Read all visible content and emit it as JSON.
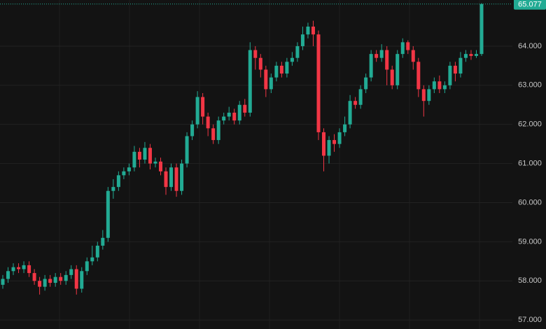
{
  "chart_data": {
    "type": "candlestick",
    "open": [
      57.9,
      58.05,
      58.25,
      58.35,
      58.3,
      58.4,
      58.2,
      58.0,
      57.85,
      58.05,
      57.95,
      58.1,
      58.0,
      58.15,
      58.3,
      57.8,
      58.25,
      58.5,
      58.6,
      58.9,
      59.1,
      60.3,
      60.4,
      60.7,
      60.8,
      60.9,
      61.3,
      61.1,
      61.4,
      61.0,
      61.05,
      60.8,
      60.4,
      60.9,
      60.3,
      61.0,
      61.7,
      62.0,
      62.7,
      62.2,
      61.9,
      61.6,
      62.1,
      62.2,
      62.3,
      62.1,
      62.5,
      62.3,
      63.9,
      63.7,
      63.4,
      62.9,
      63.2,
      63.5,
      63.3,
      63.6,
      63.7,
      64.0,
      64.3,
      64.5,
      64.3,
      61.8,
      61.2,
      61.6,
      61.5,
      61.8,
      62.0,
      62.6,
      62.5,
      62.9,
      63.2,
      63.8,
      63.7,
      63.9,
      63.4,
      63.0,
      63.8,
      64.1,
      63.9,
      63.6,
      62.9,
      62.6,
      62.9,
      63.1,
      62.9,
      63.0,
      63.5,
      63.3,
      63.7,
      63.8,
      63.75,
      63.8
    ],
    "high": [
      58.15,
      58.35,
      58.45,
      58.45,
      58.5,
      58.5,
      58.3,
      58.1,
      58.15,
      58.15,
      58.2,
      58.2,
      58.25,
      58.4,
      58.4,
      58.35,
      58.6,
      58.9,
      59.0,
      59.3,
      60.4,
      60.6,
      60.8,
      60.9,
      61.0,
      61.45,
      61.4,
      61.55,
      61.5,
      61.15,
      61.15,
      60.9,
      61.0,
      61.0,
      61.1,
      61.8,
      62.1,
      62.85,
      62.8,
      62.3,
      62.0,
      62.2,
      62.3,
      62.45,
      62.4,
      62.6,
      62.65,
      64.1,
      64.0,
      63.8,
      63.5,
      63.3,
      63.6,
      63.6,
      63.7,
      63.85,
      64.1,
      64.5,
      64.6,
      64.65,
      64.4,
      61.9,
      61.7,
      61.75,
      61.9,
      62.2,
      62.75,
      62.7,
      63.0,
      63.3,
      63.9,
      63.9,
      64.05,
      64.0,
      63.5,
      63.9,
      64.2,
      64.15,
      64.0,
      63.7,
      63.0,
      63.0,
      63.2,
      63.25,
      63.1,
      63.6,
      63.6,
      63.85,
      63.9,
      63.9,
      63.9,
      65.1
    ],
    "low": [
      57.8,
      57.95,
      58.15,
      58.2,
      58.2,
      58.1,
      57.9,
      57.65,
      57.75,
      57.85,
      57.85,
      57.9,
      57.9,
      58.05,
      57.65,
      57.7,
      58.15,
      58.4,
      58.5,
      58.8,
      59.0,
      60.1,
      60.3,
      60.6,
      60.7,
      60.8,
      60.9,
      61.0,
      60.85,
      60.9,
      60.7,
      60.2,
      60.3,
      60.15,
      60.2,
      60.9,
      61.6,
      61.9,
      62.0,
      61.7,
      61.5,
      61.5,
      62.0,
      62.1,
      62.0,
      62.0,
      62.2,
      62.2,
      63.4,
      63.2,
      62.7,
      62.8,
      63.1,
      63.2,
      63.2,
      63.5,
      63.6,
      63.9,
      64.2,
      64.0,
      61.6,
      60.8,
      61.0,
      61.3,
      61.4,
      61.7,
      61.9,
      62.4,
      62.4,
      62.8,
      63.1,
      63.6,
      63.6,
      63.0,
      62.9,
      62.9,
      63.7,
      63.8,
      63.4,
      62.7,
      62.2,
      62.5,
      62.8,
      62.8,
      62.8,
      62.9,
      63.1,
      63.2,
      63.6,
      63.65,
      63.7,
      63.75
    ],
    "close": [
      58.05,
      58.25,
      58.35,
      58.3,
      58.4,
      58.2,
      58.0,
      57.85,
      58.05,
      57.95,
      58.1,
      58.0,
      58.15,
      58.3,
      57.8,
      58.25,
      58.5,
      58.6,
      58.9,
      59.1,
      60.3,
      60.4,
      60.7,
      60.8,
      60.9,
      61.3,
      61.1,
      61.4,
      61.0,
      61.05,
      60.8,
      60.4,
      60.9,
      60.3,
      61.0,
      61.7,
      62.0,
      62.7,
      62.2,
      61.9,
      61.6,
      62.1,
      62.2,
      62.3,
      62.1,
      62.5,
      62.3,
      63.9,
      63.7,
      63.4,
      62.9,
      63.2,
      63.5,
      63.3,
      63.6,
      63.7,
      64.0,
      64.3,
      64.5,
      64.3,
      61.8,
      61.2,
      61.6,
      61.5,
      61.8,
      62.0,
      62.6,
      62.5,
      62.9,
      63.2,
      63.8,
      63.7,
      63.9,
      63.4,
      63.0,
      63.8,
      64.1,
      63.9,
      63.6,
      62.9,
      62.6,
      62.9,
      63.1,
      62.9,
      63.0,
      63.5,
      63.3,
      63.7,
      63.8,
      63.75,
      63.8,
      65.077
    ],
    "up_color": "#22ab94",
    "down_color": "#f23645",
    "ylim": [
      56.77,
      65.18
    ],
    "yticks": [
      {
        "value": 57,
        "label": "57.000"
      },
      {
        "value": 58,
        "label": "58.000"
      },
      {
        "value": 59,
        "label": "59.000"
      },
      {
        "value": 60,
        "label": "60.000"
      },
      {
        "value": 61,
        "label": "61.000"
      },
      {
        "value": 62,
        "label": "62.000"
      },
      {
        "value": 63,
        "label": "63.000"
      },
      {
        "value": 64,
        "label": "64.000"
      }
    ],
    "last_price": 65.077,
    "grid": true
  }
}
